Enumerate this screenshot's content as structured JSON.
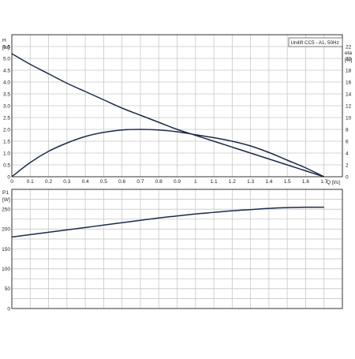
{
  "chart_data": [
    {
      "type": "line",
      "legend_text": "Unilift CC5 - A1, 50Hz",
      "legend_position": "top-right",
      "grid": true,
      "xlabel": "Q [l/s]",
      "ylabel_left_name": "H",
      "ylabel_left_unit": "[m]",
      "ylabel_right_name": "eta",
      "ylabel_right_unit": "[%]",
      "xlim": [
        0,
        1.8
      ],
      "ylim_left": [
        0,
        6
      ],
      "ylim_right": [
        0,
        24
      ],
      "x_ticks": [
        "0",
        "0.1",
        "0.2",
        "0.3",
        "0.4",
        "0.5",
        "0.6",
        "0.7",
        "0.8",
        "0.9",
        "1",
        "1.1",
        "1.2",
        "1.3",
        "1.4",
        "1.5",
        "1.6",
        "1.7"
      ],
      "y_ticks_left": [
        "0",
        "0.5",
        "1.0",
        "1.5",
        "2.0",
        "2.5",
        "3.0",
        "3.5",
        "4.0",
        "4.5",
        "5.0",
        "5.5"
      ],
      "y_ticks_right": [
        "0",
        "2",
        "4",
        "6",
        "8",
        "10",
        "12",
        "14",
        "16",
        "18",
        "20",
        "22"
      ],
      "series": [
        {
          "axis": "left",
          "x": [
            0,
            0.1,
            0.2,
            0.3,
            0.4,
            0.5,
            0.6,
            0.7,
            0.8,
            0.9,
            1.0,
            1.1,
            1.2,
            1.3,
            1.4,
            1.5,
            1.6,
            1.7
          ],
          "values": [
            5.2,
            4.75,
            4.35,
            3.95,
            3.6,
            3.25,
            2.9,
            2.6,
            2.3,
            2.0,
            1.75,
            1.5,
            1.25,
            1.0,
            0.75,
            0.5,
            0.25,
            0.0
          ]
        },
        {
          "axis": "right",
          "x": [
            0,
            0.1,
            0.2,
            0.3,
            0.4,
            0.5,
            0.6,
            0.7,
            0.8,
            0.9,
            1.0,
            1.1,
            1.2,
            1.3,
            1.4,
            1.5,
            1.6,
            1.7
          ],
          "values": [
            0,
            2.4,
            4.3,
            5.7,
            6.8,
            7.5,
            7.9,
            8.0,
            7.9,
            7.6,
            7.1,
            6.6,
            6.0,
            5.2,
            4.1,
            2.8,
            1.5,
            0
          ]
        }
      ]
    },
    {
      "type": "line",
      "grid": true,
      "ylabel_left_name": "P1",
      "ylabel_left_unit": "[W]",
      "xlim": [
        0,
        1.8
      ],
      "ylim_left": [
        0,
        300
      ],
      "y_ticks_left": [
        "0",
        "50",
        "100",
        "150",
        "200",
        "250"
      ],
      "series": [
        {
          "axis": "left",
          "x": [
            0,
            0.1,
            0.2,
            0.3,
            0.4,
            0.5,
            0.6,
            0.7,
            0.8,
            0.9,
            1.0,
            1.1,
            1.2,
            1.3,
            1.4,
            1.5,
            1.6,
            1.7
          ],
          "values": [
            180,
            186,
            192,
            198,
            204,
            210,
            216,
            222,
            228,
            233,
            238,
            242,
            246,
            249,
            252,
            254,
            255,
            255
          ]
        }
      ]
    }
  ]
}
